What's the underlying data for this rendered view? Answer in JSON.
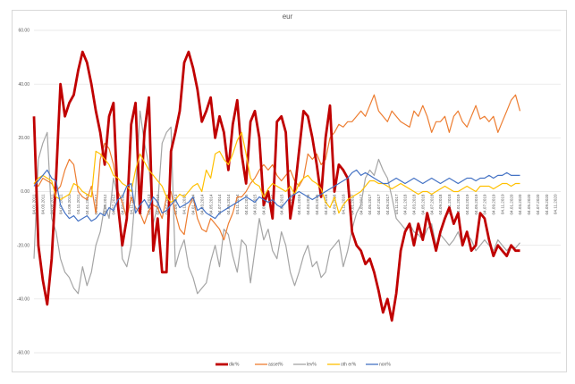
{
  "chart_data": {
    "type": "line",
    "title": "eur",
    "xlabel": "",
    "ylabel": "",
    "ylim": [
      -60,
      60
    ],
    "y_ticks": [
      "60.00",
      "40.00",
      "20.00",
      "0.00",
      "-20.00",
      "-40.00",
      "-60.00"
    ],
    "y_tick_values": [
      60,
      40,
      20,
      0,
      -20,
      -40,
      -60
    ],
    "grid": true,
    "legend_position": "bottom",
    "x_start": "2011-01",
    "x_step": "1 month",
    "x_ticks": [
      "04.01.2011",
      "04.03.2011",
      "04.05.2011",
      "04.07.2011",
      "04.09.2011",
      "04.11.2011",
      "04.01.2012",
      "04.03.2012",
      "04.05.2012",
      "04.07.2012",
      "04.09.2012",
      "04.11.2012",
      "04.01.2013",
      "04.03.2013",
      "04.05.2013",
      "04.07.2013",
      "04.09.2013",
      "04.11.2013",
      "04.01.2014",
      "04.03.2014",
      "04.05.2014",
      "04.07.2014",
      "04.09.2014",
      "04.11.2014",
      "04.01.2015",
      "04.03.2015",
      "04.05.2015",
      "04.07.2015",
      "04.09.2015",
      "04.11.2015",
      "04.01.2016",
      "04.03.2016",
      "04.05.2016",
      "04.07.2016",
      "04.09.2016",
      "04.11.2016",
      "04.01.2017",
      "04.03.2017",
      "04.05.2017",
      "04.07.2017",
      "04.09.2017",
      "04.11.2017",
      "04.01.2018",
      "04.03.2018",
      "04.05.2018",
      "04.07.2018",
      "04.09.2018",
      "04.11.2018",
      "04.01.2019",
      "04.03.2019",
      "04.05.2019",
      "04.07.2019",
      "04.09.2019",
      "04.11.2019",
      "04.01.2020",
      "04.03.2020",
      "04.05.2020",
      "04.07.2020",
      "04.09.2020",
      "04.11.2020"
    ],
    "series": [
      {
        "name": "dkr%",
        "color": "#c00000",
        "width": 2,
        "values": [
          28,
          -20,
          -33,
          -42,
          -25,
          5,
          40,
          28,
          33,
          36,
          45,
          52,
          48,
          40,
          30,
          22,
          10,
          28,
          33,
          -5,
          -20,
          -10,
          25,
          33,
          -8,
          22,
          35,
          -22,
          -10,
          -30,
          -30,
          15,
          22,
          30,
          48,
          52,
          46,
          38,
          26,
          30,
          35,
          20,
          28,
          22,
          8,
          25,
          34,
          14,
          3,
          26,
          30,
          20,
          -5,
          0,
          -10,
          26,
          28,
          22,
          -10,
          0,
          15,
          30,
          28,
          20,
          10,
          -2,
          20,
          32,
          0,
          10,
          8,
          5,
          -15,
          -20,
          -22,
          -27,
          -25,
          -30,
          -37,
          -45,
          -40,
          -48,
          -38,
          -22,
          -15,
          -12,
          -20,
          -12,
          -18,
          -8,
          -15,
          -22,
          -15,
          -10,
          -6,
          -12,
          -8,
          -20,
          -15,
          -22,
          -20,
          -8,
          -10,
          -18,
          -24,
          -20,
          -22,
          -24,
          -20,
          -22,
          -22
        ]
      },
      {
        "name": "asset%",
        "color": "#ed7d31",
        "width": 1,
        "values": [
          3,
          2,
          5,
          4,
          3,
          0,
          2,
          8,
          12,
          10,
          0,
          -2,
          -3,
          2,
          -8,
          12,
          18,
          16,
          10,
          0,
          -4,
          -10,
          -2,
          -6,
          -8,
          -12,
          -7,
          -5,
          -6,
          -10,
          -2,
          0,
          -8,
          -14,
          -16,
          -6,
          -2,
          -10,
          -14,
          -15,
          -10,
          -12,
          -14,
          -18,
          -12,
          -8,
          -2,
          -2,
          0,
          3,
          5,
          8,
          10,
          8,
          10,
          6,
          4,
          6,
          8,
          4,
          2,
          5,
          14,
          12,
          14,
          10,
          12,
          20,
          22,
          25,
          24,
          26,
          26,
          28,
          30,
          28,
          32,
          36,
          30,
          28,
          26,
          30,
          28,
          26,
          25,
          24,
          30,
          28,
          32,
          28,
          22,
          26,
          26,
          28,
          22,
          28,
          30,
          26,
          24,
          28,
          32,
          27,
          28,
          26,
          28,
          22,
          26,
          30,
          34,
          36,
          30
        ]
      },
      {
        "name": "lev%",
        "color": "#a5a5a5",
        "width": 1,
        "values": [
          -25,
          12,
          18,
          22,
          -10,
          -15,
          -25,
          -30,
          -32,
          -36,
          -38,
          -28,
          -35,
          -30,
          -20,
          -15,
          -5,
          -10,
          5,
          -2,
          -25,
          -28,
          -20,
          0,
          30,
          18,
          10,
          -12,
          -5,
          18,
          22,
          24,
          -28,
          -22,
          -18,
          -28,
          -32,
          -38,
          -36,
          -34,
          -26,
          -20,
          -28,
          -14,
          -16,
          -24,
          -30,
          -18,
          -20,
          -34,
          -22,
          -10,
          -18,
          -14,
          -22,
          -25,
          -15,
          -20,
          -30,
          -35,
          -30,
          -24,
          -20,
          -28,
          -26,
          -32,
          -30,
          -22,
          -20,
          -18,
          -28,
          -22,
          -14,
          -8,
          -5,
          5,
          8,
          6,
          12,
          8,
          5,
          -2,
          -10,
          -12,
          -14,
          -12,
          -15,
          -16,
          -18,
          -14,
          -12,
          -20,
          -16,
          -18,
          -20,
          -18,
          -15,
          -20,
          -16,
          -18,
          -22,
          -20,
          -18,
          -20,
          -22,
          -18,
          -20,
          -22,
          -20,
          -21,
          -19
        ]
      },
      {
        "name": "oth er%",
        "color": "#ffc000",
        "width": 1,
        "values": [
          3,
          5,
          6,
          5,
          4,
          -2,
          -3,
          -2,
          -1,
          3,
          2,
          0,
          -1,
          -2,
          15,
          14,
          12,
          10,
          6,
          5,
          3,
          2,
          0,
          8,
          14,
          11,
          8,
          6,
          4,
          2,
          -2,
          -4,
          -3,
          -1,
          -2,
          0,
          2,
          3,
          0,
          8,
          5,
          14,
          15,
          12,
          10,
          14,
          19,
          22,
          14,
          5,
          3,
          2,
          -2,
          1,
          3,
          2,
          1,
          0,
          2,
          -1,
          3,
          5,
          6,
          4,
          3,
          1,
          -4,
          -6,
          -2,
          -8,
          -5,
          -3,
          -2,
          -1,
          0,
          2,
          4,
          4,
          3,
          3,
          2,
          1,
          2,
          3,
          2,
          1,
          0,
          -1,
          0,
          0,
          -1,
          0,
          1,
          2,
          1,
          0,
          0,
          1,
          2,
          1,
          0,
          2,
          2,
          2,
          1,
          2,
          3,
          3,
          2,
          3,
          3
        ]
      },
      {
        "name": "non%",
        "color": "#4472c4",
        "width": 1,
        "values": [
          2,
          4,
          6,
          8,
          5,
          4,
          -5,
          -8,
          -10,
          -9,
          -11,
          -10,
          -9,
          -11,
          -10,
          -8,
          -9,
          -6,
          -7,
          -3,
          -2,
          2,
          3,
          -8,
          -5,
          -3,
          -6,
          -2,
          -4,
          -8,
          -7,
          -5,
          -3,
          -6,
          -5,
          -4,
          -2,
          -7,
          -6,
          -8,
          -9,
          -10,
          -8,
          -7,
          -6,
          -5,
          -4,
          -3,
          -2,
          -3,
          -4,
          -2,
          -3,
          -4,
          -3,
          -5,
          -6,
          -4,
          -2,
          -1,
          0,
          -1,
          -2,
          -3,
          -2,
          -1,
          0,
          1,
          2,
          3,
          4,
          5,
          7,
          8,
          6,
          7,
          6,
          5,
          4,
          3,
          3,
          4,
          5,
          4,
          3,
          4,
          5,
          4,
          3,
          4,
          5,
          4,
          3,
          4,
          5,
          4,
          3,
          4,
          5,
          5,
          4,
          5,
          5,
          6,
          5,
          6,
          6,
          7,
          6,
          6,
          6
        ]
      }
    ]
  }
}
